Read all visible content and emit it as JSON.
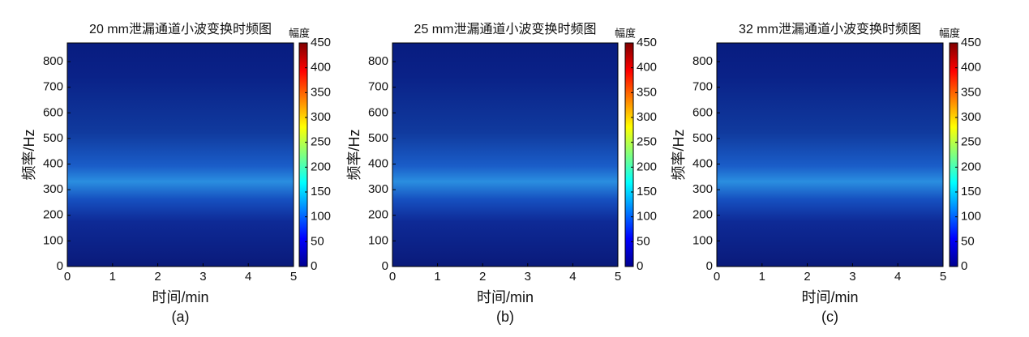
{
  "chart_data": [
    {
      "type": "heatmap",
      "title": "20 mm泄漏通道小波变换时频图",
      "xlabel": "时间/min",
      "ylabel": "频率/Hz",
      "caption": "(a)",
      "xlim": [
        0,
        5
      ],
      "xticks": [
        0,
        1,
        2,
        3,
        4,
        5
      ],
      "ylim": [
        0,
        873
      ],
      "yticks": [
        0,
        100,
        200,
        300,
        400,
        500,
        600,
        700,
        800
      ],
      "colorbar_label": "幅度",
      "clim": [
        0,
        450
      ],
      "cticks": [
        0,
        50,
        100,
        150,
        200,
        250,
        300,
        350,
        400,
        450
      ]
    },
    {
      "type": "heatmap",
      "title": "25 mm泄漏通道小波变换时频图",
      "xlabel": "时间/min",
      "ylabel": "频率/Hz",
      "caption": "(b)",
      "xlim": [
        0,
        5
      ],
      "xticks": [
        0,
        1,
        2,
        3,
        4,
        5
      ],
      "ylim": [
        0,
        873
      ],
      "yticks": [
        0,
        100,
        200,
        300,
        400,
        500,
        600,
        700,
        800
      ],
      "colorbar_label": "幅度",
      "clim": [
        0,
        450
      ],
      "cticks": [
        0,
        50,
        100,
        150,
        200,
        250,
        300,
        350,
        400,
        450
      ]
    },
    {
      "type": "heatmap",
      "title": "32 mm泄漏通道小波变换时频图",
      "xlabel": "时间/min",
      "ylabel": "频率/Hz",
      "caption": "(c)",
      "xlim": [
        0,
        5
      ],
      "xticks": [
        0,
        1,
        2,
        3,
        4,
        5
      ],
      "ylim": [
        0,
        873
      ],
      "yticks": [
        0,
        100,
        200,
        300,
        400,
        500,
        600,
        700,
        800
      ],
      "colorbar_label": "幅度",
      "clim": [
        0,
        450
      ],
      "cticks": [
        0,
        50,
        100,
        150,
        200,
        250,
        300,
        350,
        400,
        450
      ]
    }
  ]
}
